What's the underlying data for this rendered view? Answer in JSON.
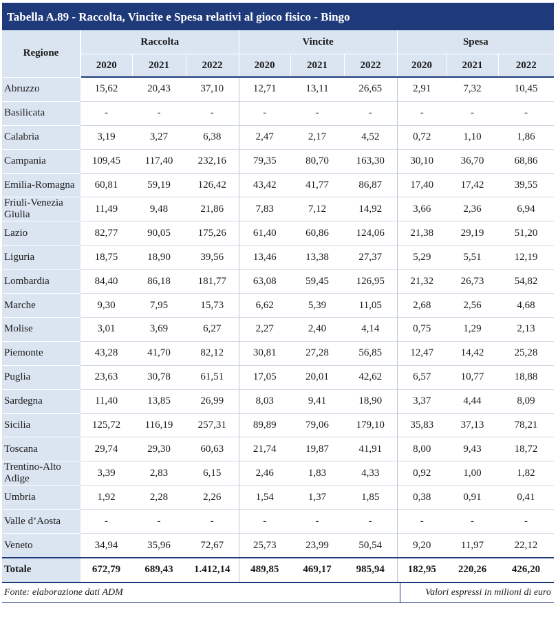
{
  "title": "Tabella A.89 - Raccolta, Vincite e Spesa relativi al gioco fisico - Bingo",
  "header": {
    "region_label": "Regione",
    "groups": [
      "Raccolta",
      "Vincite",
      "Spesa"
    ],
    "years": [
      "2020",
      "2021",
      "2022",
      "2020",
      "2021",
      "2022",
      "2020",
      "2021",
      "2022"
    ]
  },
  "rows": [
    {
      "region": "Abruzzo",
      "values": [
        "15,62",
        "20,43",
        "37,10",
        "12,71",
        "13,11",
        "26,65",
        "2,91",
        "7,32",
        "10,45"
      ]
    },
    {
      "region": "Basilicata",
      "values": [
        "-",
        "-",
        "-",
        "-",
        "-",
        "-",
        "-",
        "-",
        "-"
      ]
    },
    {
      "region": "Calabria",
      "values": [
        "3,19",
        "3,27",
        "6,38",
        "2,47",
        "2,17",
        "4,52",
        "0,72",
        "1,10",
        "1,86"
      ]
    },
    {
      "region": "Campania",
      "values": [
        "109,45",
        "117,40",
        "232,16",
        "79,35",
        "80,70",
        "163,30",
        "30,10",
        "36,70",
        "68,86"
      ]
    },
    {
      "region": "Emilia-Romagna",
      "values": [
        "60,81",
        "59,19",
        "126,42",
        "43,42",
        "41,77",
        "86,87",
        "17,40",
        "17,42",
        "39,55"
      ]
    },
    {
      "region": "Friuli-Venezia Giulia",
      "values": [
        "11,49",
        "9,48",
        "21,86",
        "7,83",
        "7,12",
        "14,92",
        "3,66",
        "2,36",
        "6,94"
      ]
    },
    {
      "region": "Lazio",
      "values": [
        "82,77",
        "90,05",
        "175,26",
        "61,40",
        "60,86",
        "124,06",
        "21,38",
        "29,19",
        "51,20"
      ]
    },
    {
      "region": "Liguria",
      "values": [
        "18,75",
        "18,90",
        "39,56",
        "13,46",
        "13,38",
        "27,37",
        "5,29",
        "5,51",
        "12,19"
      ]
    },
    {
      "region": "Lombardia",
      "values": [
        "84,40",
        "86,18",
        "181,77",
        "63,08",
        "59,45",
        "126,95",
        "21,32",
        "26,73",
        "54,82"
      ]
    },
    {
      "region": "Marche",
      "values": [
        "9,30",
        "7,95",
        "15,73",
        "6,62",
        "5,39",
        "11,05",
        "2,68",
        "2,56",
        "4,68"
      ]
    },
    {
      "region": "Molise",
      "values": [
        "3,01",
        "3,69",
        "6,27",
        "2,27",
        "2,40",
        "4,14",
        "0,75",
        "1,29",
        "2,13"
      ]
    },
    {
      "region": "Piemonte",
      "values": [
        "43,28",
        "41,70",
        "82,12",
        "30,81",
        "27,28",
        "56,85",
        "12,47",
        "14,42",
        "25,28"
      ]
    },
    {
      "region": "Puglia",
      "values": [
        "23,63",
        "30,78",
        "61,51",
        "17,05",
        "20,01",
        "42,62",
        "6,57",
        "10,77",
        "18,88"
      ]
    },
    {
      "region": "Sardegna",
      "values": [
        "11,40",
        "13,85",
        "26,99",
        "8,03",
        "9,41",
        "18,90",
        "3,37",
        "4,44",
        "8,09"
      ]
    },
    {
      "region": "Sicilia",
      "values": [
        "125,72",
        "116,19",
        "257,31",
        "89,89",
        "79,06",
        "179,10",
        "35,83",
        "37,13",
        "78,21"
      ]
    },
    {
      "region": "Toscana",
      "values": [
        "29,74",
        "29,30",
        "60,63",
        "21,74",
        "19,87",
        "41,91",
        "8,00",
        "9,43",
        "18,72"
      ]
    },
    {
      "region": "Trentino-Alto Adige",
      "values": [
        "3,39",
        "2,83",
        "6,15",
        "2,46",
        "1,83",
        "4,33",
        "0,92",
        "1,00",
        "1,82"
      ]
    },
    {
      "region": "Umbria",
      "values": [
        "1,92",
        "2,28",
        "2,26",
        "1,54",
        "1,37",
        "1,85",
        "0,38",
        "0,91",
        "0,41"
      ]
    },
    {
      "region": "Valle d’Aosta",
      "values": [
        "-",
        "-",
        "-",
        "-",
        "-",
        "-",
        "-",
        "-",
        "-"
      ]
    },
    {
      "region": "Veneto",
      "values": [
        "34,94",
        "35,96",
        "72,67",
        "25,73",
        "23,99",
        "50,54",
        "9,20",
        "11,97",
        "22,12"
      ]
    }
  ],
  "total": {
    "region": "Totale",
    "values": [
      "672,79",
      "689,43",
      "1.412,14",
      "489,85",
      "469,17",
      "985,94",
      "182,95",
      "220,26",
      "426,20"
    ]
  },
  "footer": {
    "source": "Fonte: elaborazione dati ADM",
    "note": "Valori espressi in milioni di euro"
  },
  "colors": {
    "title_bg": "#1f3a7a",
    "header_bg": "#dbe5f1"
  }
}
